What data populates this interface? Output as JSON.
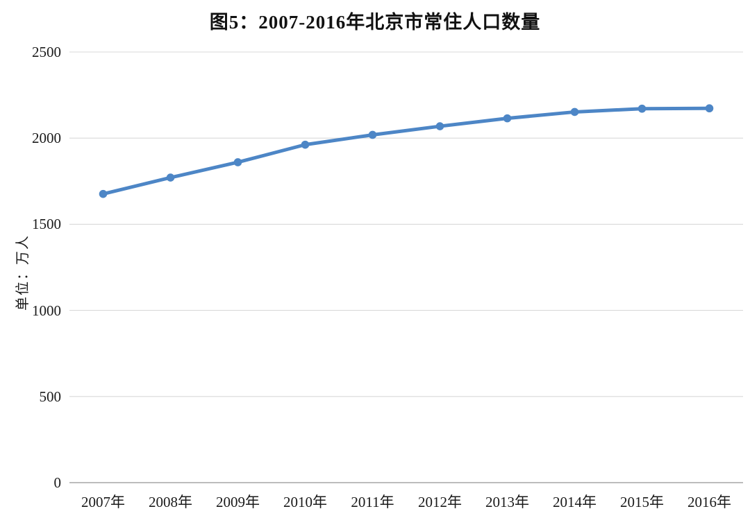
{
  "chart_data": {
    "type": "line",
    "title": "图5：2007-2016年北京市常住人口数量",
    "ylabel": "单位：万人",
    "xlabel": "",
    "categories": [
      "2007年",
      "2008年",
      "2009年",
      "2010年",
      "2011年",
      "2012年",
      "2013年",
      "2014年",
      "2015年",
      "2016年"
    ],
    "values": [
      1676,
      1771,
      1860,
      1962,
      2019,
      2069,
      2115,
      2152,
      2171,
      2173
    ],
    "ylim": [
      0,
      2500
    ],
    "yticks": [
      0,
      500,
      1000,
      1500,
      2000,
      2500
    ],
    "grid": "horizontal",
    "legend": false,
    "marker": "circle",
    "colors": {
      "line": "#4D86C6",
      "marker": "#4D86C6",
      "grid": "#D9D9D9",
      "axis": "#A6A6A6",
      "text": "#1A1A1A",
      "background": "#FFFFFF"
    }
  }
}
